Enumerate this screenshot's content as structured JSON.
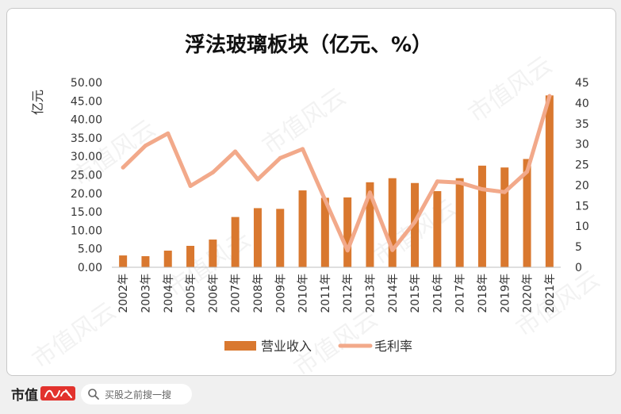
{
  "chart_data": {
    "type": "bar+line",
    "title": "浮法玻璃板块（亿元、%）",
    "ylabel": "亿元",
    "categories": [
      "2002年",
      "2003年",
      "2004年",
      "2005年",
      "2006年",
      "2007年",
      "2008年",
      "2009年",
      "2010年",
      "2011年",
      "2012年",
      "2013年",
      "2014年",
      "2015年",
      "2016年",
      "2017年",
      "2018年",
      "2019年",
      "2020年",
      "2021年"
    ],
    "series": [
      {
        "name": "营业收入",
        "type": "bar",
        "axis": "left",
        "color": "#d9782f",
        "values": [
          3.2,
          3.0,
          4.5,
          5.8,
          7.5,
          13.6,
          16.0,
          15.8,
          20.8,
          18.8,
          18.9,
          23.0,
          24.1,
          22.8,
          20.6,
          24.1,
          27.5,
          27.0,
          29.3,
          46.5
        ]
      },
      {
        "name": "毛利率",
        "type": "line",
        "axis": "right",
        "color": "#f2a98a",
        "values": [
          24.3,
          29.6,
          32.6,
          19.8,
          23.1,
          28.2,
          21.4,
          26.6,
          28.8,
          16.4,
          4.1,
          18.2,
          4.2,
          11.0,
          20.9,
          20.6,
          19.0,
          18.3,
          23.3,
          41.7
        ]
      }
    ],
    "yleft": {
      "min": 0,
      "max": 50,
      "step": 5,
      "decimals": 2
    },
    "yright": {
      "min": 0,
      "max": 45,
      "step": 5,
      "decimals": 0
    },
    "grid": false,
    "legend": "bottom"
  },
  "watermark": "市值风云",
  "footer": {
    "brand": "市值",
    "search_placeholder": "买股之前搜一搜"
  }
}
